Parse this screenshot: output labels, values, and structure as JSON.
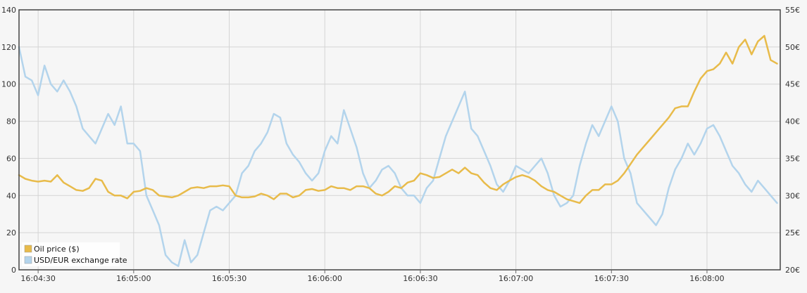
{
  "chart_data": {
    "type": "line",
    "x_axis": {
      "ticks": [
        "16:04:30",
        "16:05:00",
        "16:05:30",
        "16:06:00",
        "16:06:30",
        "16:07:00",
        "16:07:30",
        "16:08:00"
      ],
      "tick_seconds": [
        30,
        60,
        90,
        120,
        150,
        180,
        210,
        240
      ],
      "range_seconds": [
        24,
        263
      ]
    },
    "y_left": {
      "ticks": [
        "0",
        "20",
        "40",
        "60",
        "80",
        "100",
        "120",
        "140"
      ],
      "range": [
        0,
        140
      ]
    },
    "y_right": {
      "ticks": [
        "20€",
        "25€",
        "30€",
        "35€",
        "40€",
        "45€",
        "50€",
        "55€"
      ],
      "range": [
        20,
        55
      ]
    },
    "grid": true,
    "legend_position": "bottom-left",
    "series": [
      {
        "name": "Oil price ($)",
        "axis": "left",
        "color": "#e8bb4a",
        "points": [
          [
            24,
            51
          ],
          [
            26,
            49
          ],
          [
            28,
            48
          ],
          [
            30,
            47.5
          ],
          [
            32,
            48
          ],
          [
            34,
            47.5
          ],
          [
            36,
            51
          ],
          [
            38,
            47
          ],
          [
            40,
            45
          ],
          [
            42,
            43
          ],
          [
            44,
            42.5
          ],
          [
            46,
            44
          ],
          [
            48,
            49
          ],
          [
            50,
            48
          ],
          [
            52,
            42
          ],
          [
            54,
            40
          ],
          [
            56,
            40
          ],
          [
            58,
            38.5
          ],
          [
            60,
            42
          ],
          [
            62,
            42.5
          ],
          [
            64,
            44
          ],
          [
            66,
            43
          ],
          [
            68,
            40
          ],
          [
            70,
            39.5
          ],
          [
            72,
            39
          ],
          [
            74,
            40
          ],
          [
            76,
            42
          ],
          [
            78,
            44
          ],
          [
            80,
            44.5
          ],
          [
            82,
            44
          ],
          [
            84,
            45
          ],
          [
            86,
            45
          ],
          [
            88,
            45.5
          ],
          [
            90,
            45
          ],
          [
            92,
            40
          ],
          [
            94,
            39
          ],
          [
            96,
            39
          ],
          [
            98,
            39.5
          ],
          [
            100,
            41
          ],
          [
            102,
            40
          ],
          [
            104,
            38
          ],
          [
            106,
            41
          ],
          [
            108,
            41
          ],
          [
            110,
            39
          ],
          [
            112,
            40
          ],
          [
            114,
            43
          ],
          [
            116,
            43.5
          ],
          [
            118,
            42.5
          ],
          [
            120,
            43
          ],
          [
            122,
            45
          ],
          [
            124,
            44
          ],
          [
            126,
            44
          ],
          [
            128,
            43
          ],
          [
            130,
            45
          ],
          [
            132,
            45
          ],
          [
            134,
            44
          ],
          [
            136,
            41
          ],
          [
            138,
            40
          ],
          [
            140,
            42
          ],
          [
            142,
            45
          ],
          [
            144,
            44
          ],
          [
            146,
            47
          ],
          [
            148,
            48
          ],
          [
            150,
            52
          ],
          [
            152,
            51
          ],
          [
            154,
            49.5
          ],
          [
            156,
            50
          ],
          [
            158,
            52
          ],
          [
            160,
            54
          ],
          [
            162,
            52
          ],
          [
            164,
            55
          ],
          [
            166,
            52
          ],
          [
            168,
            51
          ],
          [
            170,
            47
          ],
          [
            172,
            44
          ],
          [
            174,
            43
          ],
          [
            176,
            46
          ],
          [
            178,
            48
          ],
          [
            180,
            50
          ],
          [
            182,
            51
          ],
          [
            184,
            50
          ],
          [
            186,
            48
          ],
          [
            188,
            45
          ],
          [
            190,
            43
          ],
          [
            192,
            42
          ],
          [
            194,
            40
          ],
          [
            196,
            38
          ],
          [
            198,
            37
          ],
          [
            200,
            36
          ],
          [
            202,
            40
          ],
          [
            204,
            43
          ],
          [
            206,
            43
          ],
          [
            208,
            46
          ],
          [
            210,
            46
          ],
          [
            212,
            48
          ],
          [
            214,
            52
          ],
          [
            216,
            57
          ],
          [
            218,
            62
          ],
          [
            220,
            66
          ],
          [
            222,
            70
          ],
          [
            224,
            74
          ],
          [
            226,
            78
          ],
          [
            228,
            82
          ],
          [
            230,
            87
          ],
          [
            232,
            88
          ],
          [
            234,
            88
          ],
          [
            236,
            96
          ],
          [
            238,
            103
          ],
          [
            240,
            107
          ],
          [
            242,
            108
          ],
          [
            244,
            111
          ],
          [
            246,
            117
          ],
          [
            248,
            111
          ],
          [
            250,
            120
          ],
          [
            252,
            124
          ],
          [
            254,
            116
          ],
          [
            256,
            123
          ],
          [
            258,
            126
          ],
          [
            260,
            113
          ],
          [
            262,
            111
          ]
        ]
      },
      {
        "name": "USD/EUR exchange rate",
        "axis": "right",
        "color": "#b3d4ec",
        "points": [
          [
            24,
            50
          ],
          [
            26,
            46
          ],
          [
            28,
            45.5
          ],
          [
            30,
            43.5
          ],
          [
            32,
            47.5
          ],
          [
            34,
            45
          ],
          [
            36,
            44
          ],
          [
            38,
            45.5
          ],
          [
            40,
            44
          ],
          [
            42,
            42
          ],
          [
            44,
            39
          ],
          [
            46,
            38
          ],
          [
            48,
            37
          ],
          [
            50,
            39
          ],
          [
            52,
            41
          ],
          [
            54,
            39.5
          ],
          [
            56,
            42
          ],
          [
            58,
            37
          ],
          [
            60,
            37
          ],
          [
            62,
            36
          ],
          [
            64,
            30
          ],
          [
            66,
            28
          ],
          [
            68,
            26
          ],
          [
            70,
            22
          ],
          [
            72,
            21
          ],
          [
            74,
            20.5
          ],
          [
            76,
            24
          ],
          [
            78,
            21
          ],
          [
            80,
            22
          ],
          [
            82,
            25
          ],
          [
            84,
            28
          ],
          [
            86,
            28.5
          ],
          [
            88,
            28
          ],
          [
            90,
            29
          ],
          [
            92,
            30
          ],
          [
            94,
            33
          ],
          [
            96,
            34
          ],
          [
            98,
            36
          ],
          [
            100,
            37
          ],
          [
            102,
            38.5
          ],
          [
            104,
            41
          ],
          [
            106,
            40.5
          ],
          [
            108,
            37
          ],
          [
            110,
            35.5
          ],
          [
            112,
            34.5
          ],
          [
            114,
            33
          ],
          [
            116,
            32
          ],
          [
            118,
            33
          ],
          [
            120,
            36
          ],
          [
            122,
            38
          ],
          [
            124,
            37
          ],
          [
            126,
            41.5
          ],
          [
            128,
            39
          ],
          [
            130,
            36.5
          ],
          [
            132,
            33
          ],
          [
            134,
            31
          ],
          [
            136,
            32
          ],
          [
            138,
            33.5
          ],
          [
            140,
            34
          ],
          [
            142,
            33
          ],
          [
            144,
            31
          ],
          [
            146,
            30
          ],
          [
            148,
            30
          ],
          [
            150,
            29
          ],
          [
            152,
            31
          ],
          [
            154,
            32
          ],
          [
            156,
            35
          ],
          [
            158,
            38
          ],
          [
            160,
            40
          ],
          [
            162,
            42
          ],
          [
            164,
            44
          ],
          [
            166,
            39
          ],
          [
            168,
            38
          ],
          [
            170,
            36
          ],
          [
            172,
            34
          ],
          [
            174,
            31.5
          ],
          [
            176,
            30.5
          ],
          [
            178,
            32
          ],
          [
            180,
            34
          ],
          [
            182,
            33.5
          ],
          [
            184,
            33
          ],
          [
            186,
            34
          ],
          [
            188,
            35
          ],
          [
            190,
            33
          ],
          [
            192,
            30
          ],
          [
            194,
            28.5
          ],
          [
            196,
            29
          ],
          [
            198,
            30
          ],
          [
            200,
            34
          ],
          [
            202,
            37
          ],
          [
            204,
            39.5
          ],
          [
            206,
            38
          ],
          [
            208,
            40
          ],
          [
            210,
            42
          ],
          [
            212,
            40
          ],
          [
            214,
            35
          ],
          [
            216,
            33
          ],
          [
            218,
            29
          ],
          [
            220,
            28
          ],
          [
            222,
            27
          ],
          [
            224,
            26
          ],
          [
            226,
            27.5
          ],
          [
            228,
            31
          ],
          [
            230,
            33.5
          ],
          [
            232,
            35
          ],
          [
            234,
            37
          ],
          [
            236,
            35.5
          ],
          [
            238,
            37
          ],
          [
            240,
            39
          ],
          [
            242,
            39.5
          ],
          [
            244,
            38
          ],
          [
            246,
            36
          ],
          [
            248,
            34
          ],
          [
            250,
            33
          ],
          [
            252,
            31.5
          ],
          [
            254,
            30.5
          ],
          [
            256,
            32
          ],
          [
            258,
            31
          ],
          [
            260,
            30
          ],
          [
            262,
            29
          ]
        ]
      }
    ]
  }
}
